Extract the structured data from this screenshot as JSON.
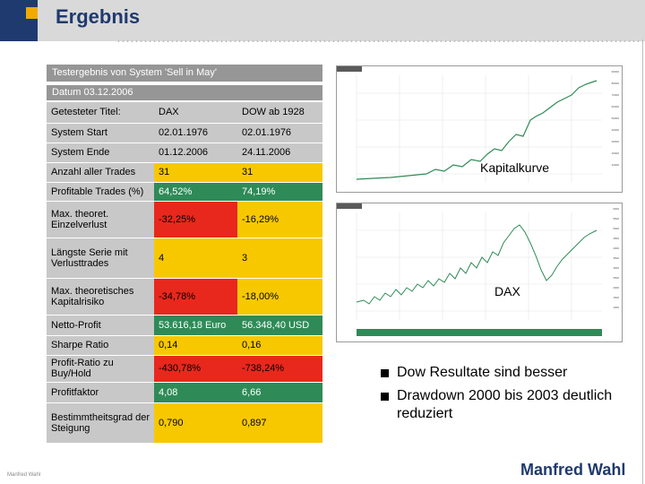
{
  "header": {
    "title": "Ergebnis"
  },
  "table": {
    "caption": "Testergebnis von System 'Sell in May'",
    "date": "Datum 03.12.2006",
    "rows": [
      {
        "label": "Getesteter Titel:",
        "v1": "DAX",
        "v2": "DOW ab 1928"
      },
      {
        "label": "System Start",
        "v1": "02.01.1976",
        "v2": "02.01.1976"
      },
      {
        "label": "System Ende",
        "v1": "01.12.2006",
        "v2": "24.11.2006"
      },
      {
        "label": "Anzahl aller Trades",
        "v1": "31",
        "v2": "31"
      },
      {
        "label": "Profitable Trades (%)",
        "v1": "64,52%",
        "v2": "74,19%"
      },
      {
        "label": "Max. theoret. Einzelverlust",
        "v1": "-32,25%",
        "v2": "-16,29%"
      },
      {
        "label": "Längste Serie mit Verlusttrades",
        "v1": "4",
        "v2": "3"
      },
      {
        "label": "Max. theoretisches Kapitalrisiko",
        "v1": "-34,78%",
        "v2": "-18,00%"
      },
      {
        "label": "Netto-Profit",
        "v1": "53.616,18 Euro",
        "v2": "56.348,40 USD"
      },
      {
        "label": "Sharpe Ratio",
        "v1": "0,14",
        "v2": "0,16"
      },
      {
        "label": "Profit-Ratio zu Buy/Hold",
        "v1": "-430,78%",
        "v2": "-738,24%"
      },
      {
        "label": "Profitfaktor",
        "v1": "4,08",
        "v2": "6,66"
      },
      {
        "label": "Bestimmtheitsgrad der Steigung",
        "v1": "0,790",
        "v2": "0,897"
      }
    ]
  },
  "charts": {
    "top_label": "Kapitalkurve",
    "bottom_label": "DAX",
    "top_ticks": [
      "90000",
      "80000",
      "70000",
      "60000",
      "50000",
      "40000",
      "30000",
      "20000",
      "10000"
    ],
    "bottom_ticks": [
      "6000",
      "5500",
      "5000",
      "4500",
      "4000",
      "3500",
      "3000",
      "2500",
      "2000",
      "1500",
      "1000"
    ]
  },
  "bullets": [
    "Dow Resultate sind besser",
    "Drawdown 2000 bis 2003 deutlich reduziert"
  ],
  "signature": "Manfred Wahl",
  "footer": "Manfred Wahl"
}
